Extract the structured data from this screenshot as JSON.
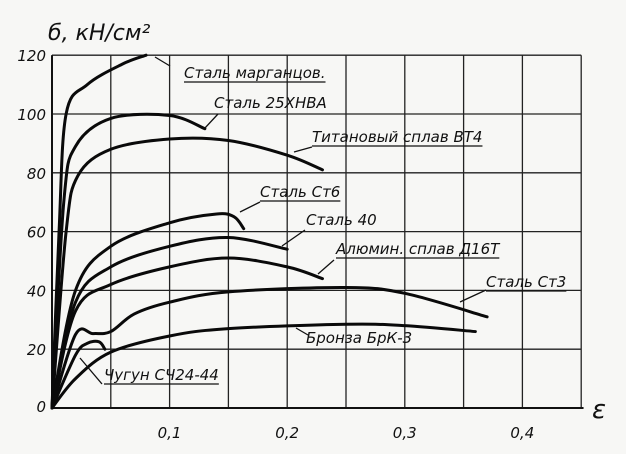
{
  "chart_data": {
    "type": "line",
    "title": "",
    "xlabel": "ε",
    "ylabel": "б, кН/см²",
    "xlim": [
      0,
      0.45
    ],
    "ylim": [
      0,
      120
    ],
    "grid": true,
    "x_ticks": [
      {
        "v": 0.1,
        "label": "0,1"
      },
      {
        "v": 0.2,
        "label": "0,2"
      },
      {
        "v": 0.3,
        "label": "0,3"
      },
      {
        "v": 0.4,
        "label": "0,4"
      }
    ],
    "y_ticks": [
      {
        "v": 0,
        "label": "0"
      },
      {
        "v": 20,
        "label": "20"
      },
      {
        "v": 40,
        "label": "40"
      },
      {
        "v": 60,
        "label": "60"
      },
      {
        "v": 80,
        "label": "80"
      },
      {
        "v": 100,
        "label": "100"
      },
      {
        "v": 120,
        "label": "120"
      }
    ],
    "series": [
      {
        "name": "Сталь марганцов.",
        "points": [
          [
            0,
            0
          ],
          [
            0.006,
            60
          ],
          [
            0.012,
            100
          ],
          [
            0.03,
            110
          ],
          [
            0.06,
            117
          ],
          [
            0.08,
            120
          ]
        ]
      },
      {
        "name": "Сталь 25ХНВА",
        "points": [
          [
            0,
            0
          ],
          [
            0.01,
            70
          ],
          [
            0.02,
            89
          ],
          [
            0.05,
            98.5
          ],
          [
            0.1,
            99.5
          ],
          [
            0.13,
            95
          ]
        ]
      },
      {
        "name": "Титановый сплав ВТ4",
        "points": [
          [
            0,
            0
          ],
          [
            0.012,
            60
          ],
          [
            0.022,
            79
          ],
          [
            0.05,
            88
          ],
          [
            0.1,
            91.5
          ],
          [
            0.15,
            91
          ],
          [
            0.2,
            86
          ],
          [
            0.23,
            81
          ]
        ]
      },
      {
        "name": "Сталь Ст6",
        "points": [
          [
            0,
            0
          ],
          [
            0.02,
            40
          ],
          [
            0.05,
            55
          ],
          [
            0.1,
            63
          ],
          [
            0.14,
            66
          ],
          [
            0.155,
            65
          ],
          [
            0.163,
            61
          ]
        ]
      },
      {
        "name": "Сталь 40",
        "points": [
          [
            0,
            0
          ],
          [
            0.02,
            36
          ],
          [
            0.05,
            48
          ],
          [
            0.1,
            55
          ],
          [
            0.15,
            58
          ],
          [
            0.2,
            54
          ]
        ]
      },
      {
        "name": "Алюмин. сплав Д16Т",
        "points": [
          [
            0,
            0
          ],
          [
            0.02,
            33
          ],
          [
            0.05,
            42
          ],
          [
            0.1,
            48
          ],
          [
            0.15,
            51
          ],
          [
            0.2,
            48
          ],
          [
            0.23,
            44
          ]
        ]
      },
      {
        "name": "Сталь Ст3",
        "points": [
          [
            0,
            0
          ],
          [
            0.02,
            25
          ],
          [
            0.035,
            25.3
          ],
          [
            0.05,
            26
          ],
          [
            0.07,
            32
          ],
          [
            0.1,
            36
          ],
          [
            0.15,
            39.5
          ],
          [
            0.25,
            41
          ],
          [
            0.3,
            39
          ],
          [
            0.37,
            31
          ]
        ]
      },
      {
        "name": "Бронза БрК-3",
        "points": [
          [
            0,
            0
          ],
          [
            0.02,
            10
          ],
          [
            0.05,
            19
          ],
          [
            0.1,
            24.5
          ],
          [
            0.15,
            27
          ],
          [
            0.25,
            28.5
          ],
          [
            0.3,
            28
          ],
          [
            0.36,
            26
          ]
        ]
      },
      {
        "name": "Чугун СЧ24-44",
        "points": [
          [
            0,
            0
          ],
          [
            0.02,
            18
          ],
          [
            0.03,
            22
          ],
          [
            0.04,
            22.5
          ],
          [
            0.045,
            20
          ]
        ]
      }
    ]
  }
}
